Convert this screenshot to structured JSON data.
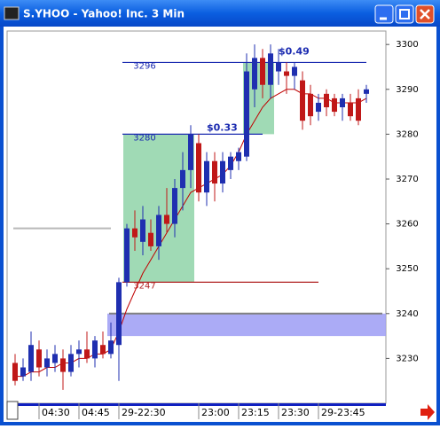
{
  "chart_data": {
    "type": "candlestick",
    "title": "S.YHOO - Yahoo! Inc. 3 Min",
    "categories": [
      null,
      null,
      null,
      "04:30",
      null,
      null,
      null,
      null,
      "04:45",
      null,
      null,
      null,
      null,
      "29-22:30",
      null,
      null,
      null,
      null,
      null,
      null,
      null,
      null,
      null,
      "23:00",
      null,
      null,
      null,
      null,
      "23:15",
      null,
      null,
      null,
      null,
      "23:30",
      null,
      null,
      null,
      null,
      "29-23:45",
      null,
      null,
      null,
      null,
      null,
      null
    ],
    "open": [
      3229,
      3226,
      3227,
      3232,
      3228,
      3229,
      3230,
      3227,
      3231,
      3232,
      3230,
      3233,
      3231,
      3233,
      3247,
      3259,
      3256,
      3258,
      3255,
      3262,
      3260,
      3268,
      3272,
      3278,
      3267,
      3274,
      3269,
      3272,
      3274,
      3275,
      3290,
      3297,
      3291,
      3294,
      3294,
      3293,
      3292,
      3289,
      3285,
      3289,
      3288,
      3286,
      3287,
      3288,
      3289
    ],
    "high": [
      3231,
      3230,
      3236,
      3234,
      3232,
      3233,
      3232,
      3233,
      3234,
      3236,
      3235,
      3236,
      3238,
      3248,
      3260,
      3263,
      3264,
      3261,
      3264,
      3268,
      3270,
      3276,
      3282,
      3280,
      3276,
      3276,
      3276,
      3276,
      3277,
      3298,
      3300,
      3299,
      3300,
      3299,
      3296,
      3296,
      3294,
      3291,
      3289,
      3290,
      3289,
      3289,
      3289,
      3290,
      3291
    ],
    "low": [
      3224,
      3225,
      3225,
      3226,
      3226,
      3227,
      3223,
      3226,
      3228,
      3229,
      3228,
      3230,
      3230,
      3225,
      3246,
      3254,
      3253,
      3254,
      3252,
      3258,
      3257,
      3263,
      3268,
      3265,
      3264,
      3265,
      3267,
      3270,
      3272,
      3274,
      3286,
      3288,
      3288,
      3291,
      3289,
      3290,
      3281,
      3282,
      3283,
      3284,
      3284,
      3283,
      3283,
      3282,
      3287
    ],
    "close": [
      3225,
      3228,
      3233,
      3228,
      3230,
      3231,
      3227,
      3231,
      3232,
      3230,
      3234,
      3231,
      3234,
      3247,
      3259,
      3257,
      3261,
      3255,
      3262,
      3260,
      3268,
      3272,
      3280,
      3267,
      3274,
      3269,
      3274,
      3275,
      3276,
      3294,
      3297,
      3291,
      3298,
      3296,
      3293,
      3295,
      3283,
      3284,
      3287,
      3286,
      3285,
      3288,
      3284,
      3283,
      3290
    ],
    "up_color": "#1f2fb0",
    "down_color": "#c01818",
    "moving_average": {
      "color": "#c00000",
      "values": [
        3226,
        3226,
        3227,
        3227,
        3228,
        3228,
        3229,
        3229,
        3230,
        3230,
        3231,
        3231,
        3232,
        3236,
        3241,
        3245,
        3249,
        3252,
        3255,
        3258,
        3261,
        3264,
        3267,
        3268,
        3269,
        3270,
        3271,
        3273,
        3276,
        3280,
        3283,
        3286,
        3288,
        3289,
        3290,
        3290,
        3289,
        3289,
        3288,
        3288,
        3287,
        3287,
        3287,
        3287,
        3288
      ]
    },
    "ylim": [
      3220,
      3303
    ],
    "yticks": [
      3230,
      3240,
      3250,
      3260,
      3270,
      3280,
      3290,
      3300
    ],
    "price_levels": [
      {
        "value": 3296,
        "color": "#1a2ab0",
        "start": 13,
        "end": 44
      },
      {
        "value": 3280,
        "color": "#1a2ab0",
        "start": 13,
        "end": 31
      },
      {
        "value": 3247,
        "color": "#b02020",
        "start": 13,
        "end": 38
      }
    ],
    "lines": [
      {
        "value": 3259,
        "color": "#b8b8b8",
        "start": 0,
        "end": 12
      },
      {
        "value": 3240,
        "color": "#808080",
        "start": 12,
        "end": 46
      }
    ],
    "zones": [
      {
        "low": 3247,
        "high": 3280,
        "start": 14,
        "end": 22,
        "color": "#8fd4a8"
      },
      {
        "low": 3280,
        "high": 3296,
        "start": 29,
        "end": 32,
        "color": "#8fd4a8"
      },
      {
        "low": 3235,
        "high": 3240,
        "start": 12,
        "end": 53,
        "color": "#9c9cf4"
      }
    ],
    "profit_labels": [
      {
        "text": "$0.33",
        "index": 24,
        "price": 3281
      },
      {
        "text": "$0.49",
        "index": 33,
        "price": 3298
      }
    ]
  }
}
